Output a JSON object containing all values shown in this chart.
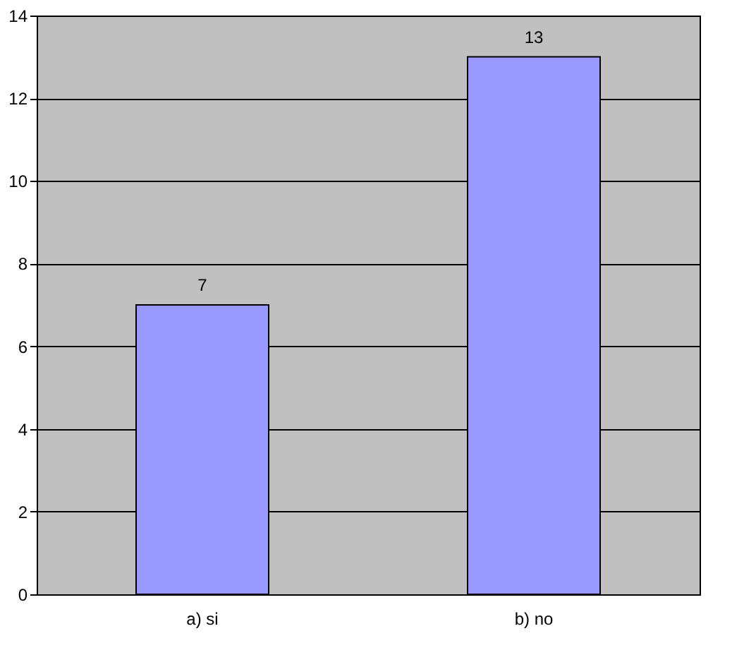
{
  "chart_data": {
    "type": "bar",
    "categories": [
      "a) si",
      "b) no"
    ],
    "values": [
      7,
      13
    ],
    "color": "#9999ff",
    "ylim": [
      0,
      14
    ],
    "yticks": [
      0,
      2,
      4,
      6,
      8,
      10,
      12,
      14
    ],
    "grid": "y",
    "data_labels": true
  }
}
